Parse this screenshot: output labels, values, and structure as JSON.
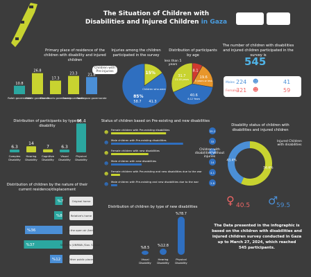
{
  "header": {
    "title_line1": "The Situation of Children with",
    "title_line2a": "Disabilities and Injured Children",
    "title_line2b": "in Gaza"
  },
  "stat_total": {
    "label": "The number of children with disabilities and injured children participated in the survey is",
    "value": "545",
    "males_label": "Males",
    "males_value": "224",
    "males_pct": "41",
    "females_label": "Females",
    "females_value": "321",
    "females_pct": "59"
  },
  "text_block": {
    "line1": "The Data presented in the infographic is",
    "line2": "based on the children with disabilities and",
    "line3": "injured children survey conducted in Gaza",
    "line4": "up to March 27, 2024, which reached",
    "line5": "545 participants."
  },
  "chart_data": [
    {
      "id": "residence",
      "type": "bar",
      "title": "Primary place of residence of the children with disability and injured children",
      "categories": [
        "Rafah governorate",
        "Middle governorate",
        "Khan Younis governorate",
        "Gaza governorate",
        "North gaza governorate"
      ],
      "values": [
        10.8,
        26.8,
        17.3,
        23.3,
        21.8
      ],
      "colors": [
        "#2ba7a0",
        "#c8d330",
        "#c8d330",
        "#c8d330",
        "#4b8fd6"
      ]
    },
    {
      "id": "injuries",
      "type": "pie",
      "title": "Injuries among the children participated in the survey",
      "slices": [
        {
          "label": "Children with Pre-injuries",
          "value": 15
        },
        {
          "label": "Children who were injured as a result of the war",
          "value": 85
        }
      ],
      "sub_male": "58.7",
      "sub_female": "41.3",
      "colors": [
        "#c8d330",
        "#2f6fc0"
      ]
    },
    {
      "id": "age",
      "type": "pie",
      "title": "Distribution of participants by age",
      "slices": [
        {
          "label": "less than 5 years",
          "value": 8.1
        },
        {
          "label": "5 years or less",
          "value": 19.6
        },
        {
          "label": "6-12 Years",
          "value": 40.6
        },
        {
          "label": "13-18 years",
          "value": 31.7
        }
      ],
      "colors": [
        "#d13a2f",
        "#e8962a",
        "#2f6fc0",
        "#c8d330"
      ]
    },
    {
      "id": "disability_type",
      "type": "bar",
      "title": "Distribution of participants by type of disability",
      "categories": [
        "Complex Disability",
        "Hearing Disability",
        "Cognitive Disability",
        "Visual Disability",
        "Physical Disability"
      ],
      "values": [
        6.3,
        14,
        7,
        6.3,
        66.4
      ],
      "colors": [
        "#2ba7a0",
        "#c8d330",
        "#c8d330",
        "#2ba7a0",
        "#2ba7a0"
      ]
    },
    {
      "id": "status",
      "type": "bar",
      "title": "Status of children based on Pre-existing and new disabilities",
      "categories": [
        "Female children with Pre-existing disabilities",
        "Male children with Pre-existing disabilities",
        "Female children with new disabilities",
        "Male children with new disabilities",
        "Female children with Pre-existing and new disabilities due to the war",
        "Male children with Pre-existing and new disabilities due to the war"
      ],
      "values": [
        25.2,
        33.0,
        17.1,
        14.0,
        4.1,
        2.8
      ],
      "colors": [
        "#c8d330",
        "#2f6fc0",
        "#c8d330",
        "#2f6fc0",
        "#c8d330",
        "#2f6fc0"
      ]
    },
    {
      "id": "disability_status",
      "type": "pie",
      "title": "Disability status of children with disabilities and injured children",
      "slices": [
        {
          "label": "Children with disabilities without injuries",
          "value": 56.6
        },
        {
          "label": "Injured Children with disabilities",
          "value": 43.4
        }
      ],
      "sub_female": "40.5",
      "sub_male": "59.5",
      "colors": [
        "#c8d330",
        "#4b8fd6"
      ]
    },
    {
      "id": "displacement",
      "type": "bar",
      "title": "Distribution of children by the nature of their current residence/displacement",
      "categories": [
        "Original home",
        "Relative's home",
        "In the open air /tents",
        "Shelters (UNRWA /Gov. Schools)",
        "Other public places"
      ],
      "values": [
        7,
        8,
        36,
        37,
        12
      ],
      "colors": [
        "#2ba7a0",
        "#2ba7a0",
        "#4b8fd6",
        "#2ba7a0",
        "#4b8fd6"
      ]
    },
    {
      "id": "new_disabilities",
      "type": "bar",
      "title": "Distribution of children by type of new disabilities",
      "categories": [
        "Visual Disability",
        "Hearing Disability",
        "Physical Disability"
      ],
      "values": [
        8.5,
        12.8,
        78.7
      ],
      "colors": [
        "#2f6fc0",
        "#2f6fc0",
        "#2f6fc0"
      ]
    }
  ]
}
